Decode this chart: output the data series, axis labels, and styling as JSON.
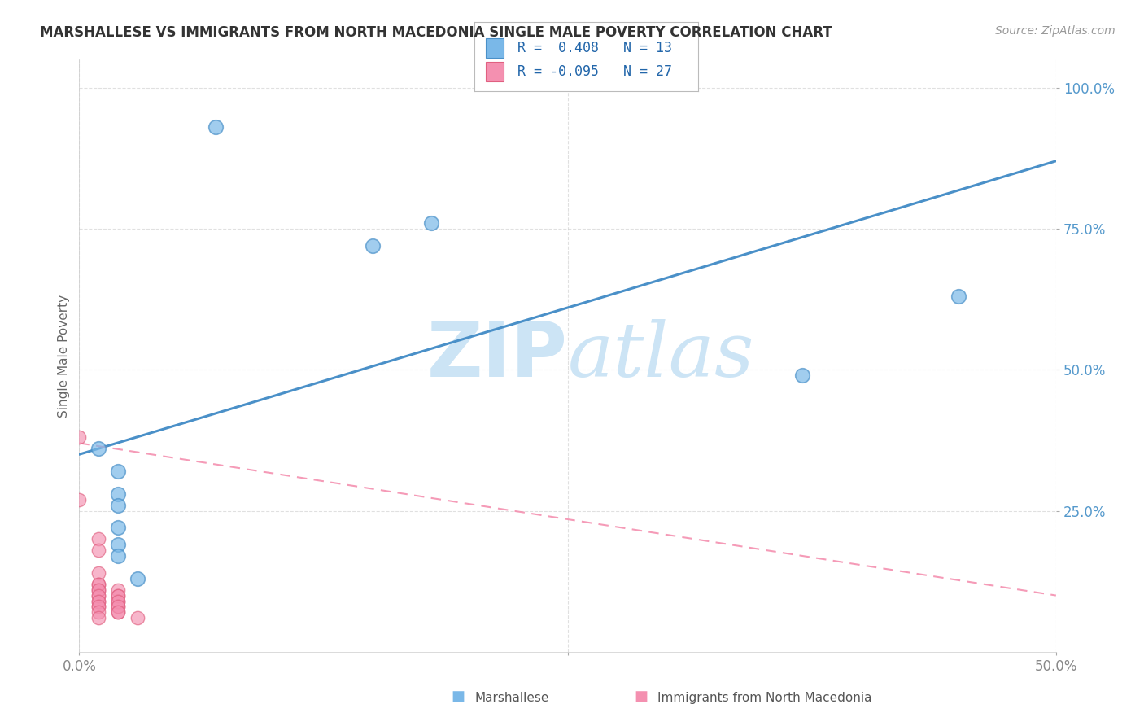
{
  "title": "MARSHALLESE VS IMMIGRANTS FROM NORTH MACEDONIA SINGLE MALE POVERTY CORRELATION CHART",
  "source": "Source: ZipAtlas.com",
  "ylabel": "Single Male Poverty",
  "xlim": [
    0.0,
    0.5
  ],
  "ylim": [
    0.0,
    1.05
  ],
  "xtick_labels": [
    "0.0%",
    "",
    "50.0%"
  ],
  "xtick_vals": [
    0.0,
    0.25,
    0.5
  ],
  "ytick_labels": [
    "25.0%",
    "50.0%",
    "75.0%",
    "100.0%"
  ],
  "ytick_vals": [
    0.25,
    0.5,
    0.75,
    1.0
  ],
  "marshallese_R": 0.408,
  "marshallese_N": 13,
  "macedonia_R": -0.095,
  "macedonia_N": 27,
  "marshallese_color": "#7ab8e8",
  "marshallese_color_dark": "#4a90c8",
  "macedonia_color": "#f490b0",
  "macedonia_color_dark": "#e06080",
  "marshallese_scatter": [
    [
      0.07,
      0.93
    ],
    [
      0.15,
      0.72
    ],
    [
      0.18,
      0.76
    ],
    [
      0.37,
      0.49
    ],
    [
      0.45,
      0.63
    ],
    [
      0.01,
      0.36
    ],
    [
      0.02,
      0.28
    ],
    [
      0.02,
      0.32
    ],
    [
      0.02,
      0.26
    ],
    [
      0.02,
      0.22
    ],
    [
      0.02,
      0.19
    ],
    [
      0.02,
      0.17
    ],
    [
      0.03,
      0.13
    ]
  ],
  "macedonia_scatter": [
    [
      0.0,
      0.38
    ],
    [
      0.0,
      0.27
    ],
    [
      0.01,
      0.2
    ],
    [
      0.01,
      0.18
    ],
    [
      0.01,
      0.14
    ],
    [
      0.01,
      0.12
    ],
    [
      0.01,
      0.11
    ],
    [
      0.01,
      0.1
    ],
    [
      0.01,
      0.09
    ],
    [
      0.01,
      0.08
    ],
    [
      0.01,
      0.12
    ],
    [
      0.01,
      0.11
    ],
    [
      0.01,
      0.1
    ],
    [
      0.01,
      0.09
    ],
    [
      0.01,
      0.08
    ],
    [
      0.01,
      0.07
    ],
    [
      0.01,
      0.06
    ],
    [
      0.02,
      0.11
    ],
    [
      0.02,
      0.1
    ],
    [
      0.02,
      0.09
    ],
    [
      0.02,
      0.08
    ],
    [
      0.02,
      0.07
    ],
    [
      0.02,
      0.1
    ],
    [
      0.02,
      0.09
    ],
    [
      0.02,
      0.08
    ],
    [
      0.02,
      0.07
    ],
    [
      0.03,
      0.06
    ]
  ],
  "marshallese_line_x": [
    0.0,
    0.5
  ],
  "marshallese_line_y": [
    0.35,
    0.87
  ],
  "macedonia_line_x": [
    0.0,
    0.5
  ],
  "macedonia_line_y": [
    0.37,
    0.1
  ],
  "background_color": "#ffffff",
  "watermark_color": "#cce4f5",
  "grid_color": "#cccccc",
  "ytick_color": "#5599cc",
  "xtick_color": "#888888"
}
